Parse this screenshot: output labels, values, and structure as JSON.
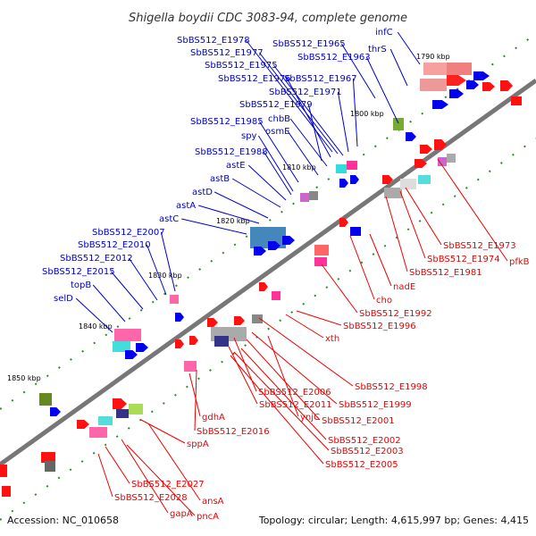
{
  "title": "Shigella boydii CDC 3083-94, complete genome",
  "accession": "Accession: NC_010658",
  "topology": "Topology: circular; Length: 4,615,997 bp; Genes: 4,415",
  "colors": {
    "upper_strand": "#0000cc",
    "lower_strand": "#ee0000",
    "backbone": "#777777",
    "rna": "#009900"
  },
  "ticks": [
    "1790 kbp",
    "1800 kbp",
    "1810 kbp",
    "1820 kbp",
    "1830 kbp",
    "1840 kbp",
    "1850 kbp"
  ],
  "upper_labels": [
    "infC",
    "thrS",
    "SbBS512_E1965",
    "SbBS512_E1963",
    "SbBS512_E1978",
    "SbBS512_E1977",
    "SbBS512_E1975",
    "SbBS512_E1976",
    "SbBS512_E1967",
    "SbBS512_E1971",
    "SbBS512_E1979",
    "chbB",
    "osmE",
    "SbBS512_E1985",
    "spy",
    "SbBS512_E1988",
    "astE",
    "astB",
    "astD",
    "astA",
    "astC",
    "SbBS512_E2007",
    "SbBS512_E2010",
    "SbBS512_E2012",
    "SbBS512_E2015",
    "topB",
    "selD"
  ],
  "lower_labels": [
    "SbBS512_E1973",
    "pfkB",
    "SbBS512_E1974",
    "SbBS512_E1981",
    "nadE",
    "cho",
    "SbBS512_E1992",
    "SbBS512_E1996",
    "xth",
    "SbBS512_E1998",
    "SbBS512_E2006",
    "SbBS512_E1999",
    "SbBS512_E2011",
    "ynjC",
    "SbBS512_E2001",
    "gdhA",
    "SbBS512_E2016",
    "SbBS512_E2002",
    "SbBS512_E2003",
    "SbBS512_E2005",
    "sppA",
    "SbBS512_E2027",
    "SbBS512_E2028",
    "ansA",
    "gapA",
    "pncA"
  ]
}
